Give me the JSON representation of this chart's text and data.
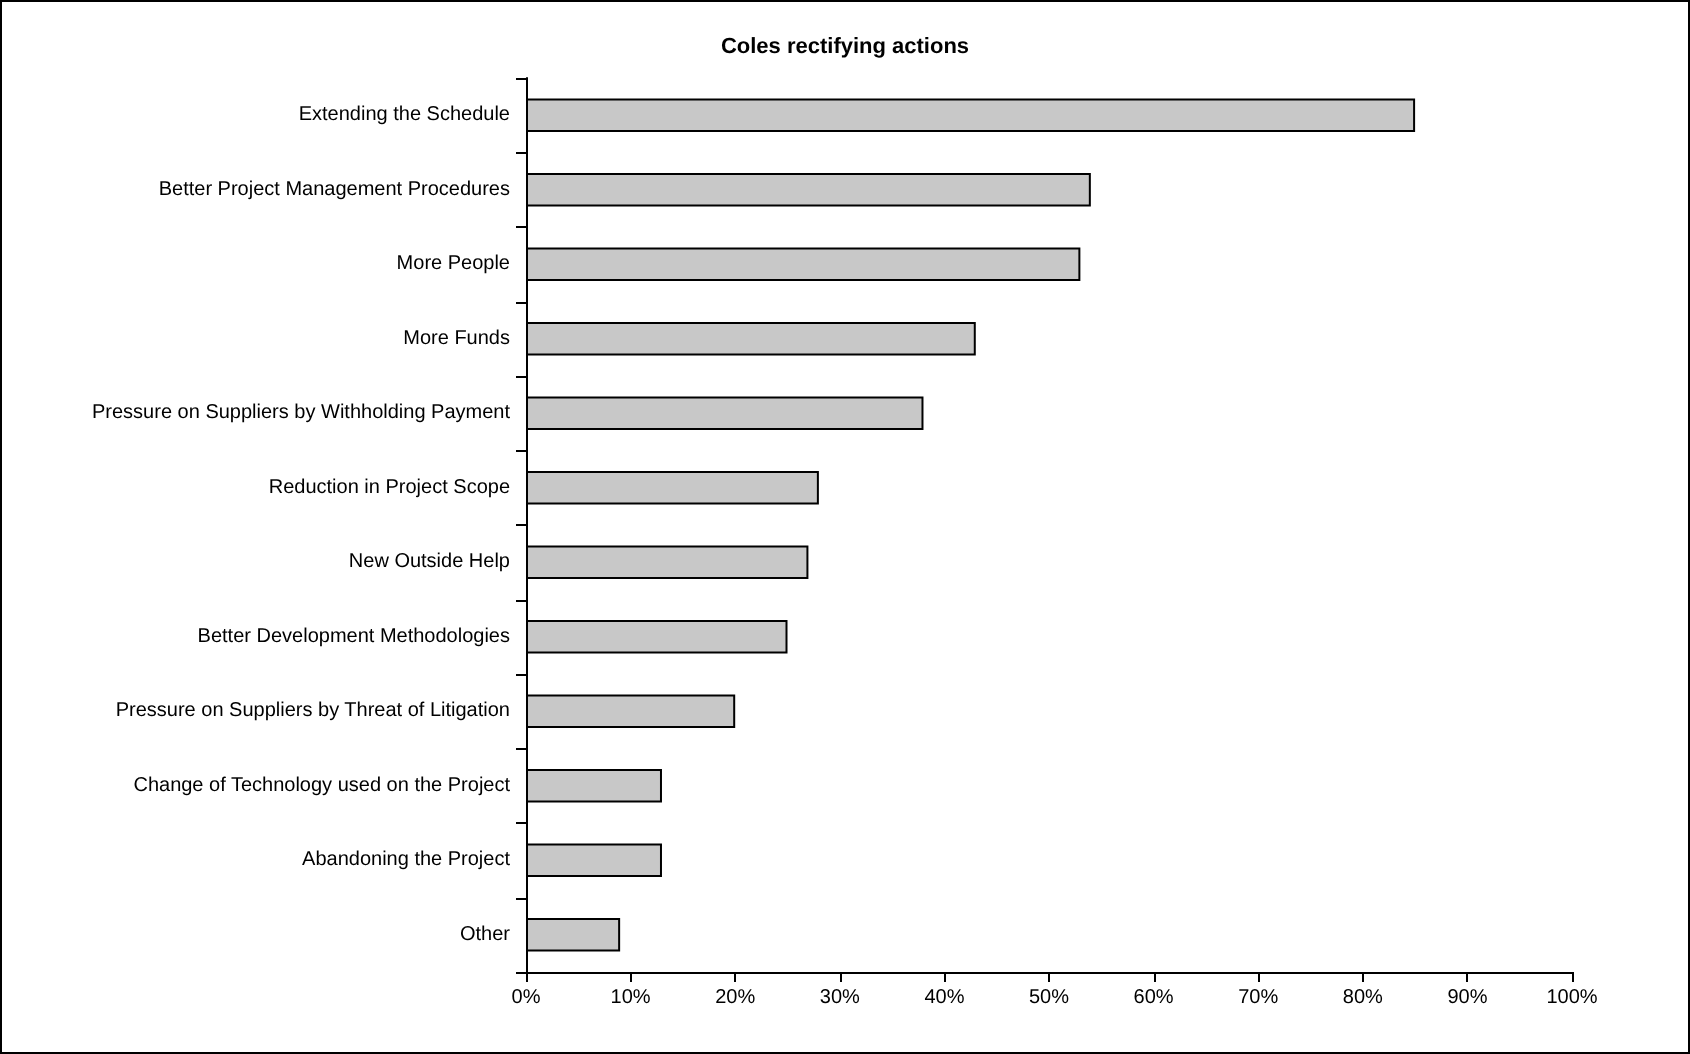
{
  "chart_data": {
    "type": "bar",
    "orientation": "horizontal",
    "title": "Coles rectifying actions",
    "categories": [
      "Extending the Schedule",
      "Better Project Management Procedures",
      "More People",
      "More Funds",
      "Pressure on Suppliers by Withholding Payment",
      "Reduction in Project Scope",
      "New Outside Help",
      "Better Development Methodologies",
      "Pressure on Suppliers by Threat of Litigation",
      "Change of Technology used on the Project",
      "Abandoning the Project",
      "Other"
    ],
    "values": [
      85,
      54,
      53,
      43,
      38,
      28,
      27,
      25,
      20,
      13,
      13,
      9
    ],
    "color": "#c8c8c8",
    "xlim": [
      0,
      100
    ],
    "xticks": [
      {
        "value": 0,
        "label": "0%"
      },
      {
        "value": 10,
        "label": "10%"
      },
      {
        "value": 20,
        "label": "20%"
      },
      {
        "value": 30,
        "label": "30%"
      },
      {
        "value": 40,
        "label": "40%"
      },
      {
        "value": 50,
        "label": "50%"
      },
      {
        "value": 60,
        "label": "60%"
      },
      {
        "value": 70,
        "label": "70%"
      },
      {
        "value": 80,
        "label": "80%"
      },
      {
        "value": 90,
        "label": "90%"
      },
      {
        "value": 100,
        "label": "100%"
      }
    ],
    "grid": false
  }
}
